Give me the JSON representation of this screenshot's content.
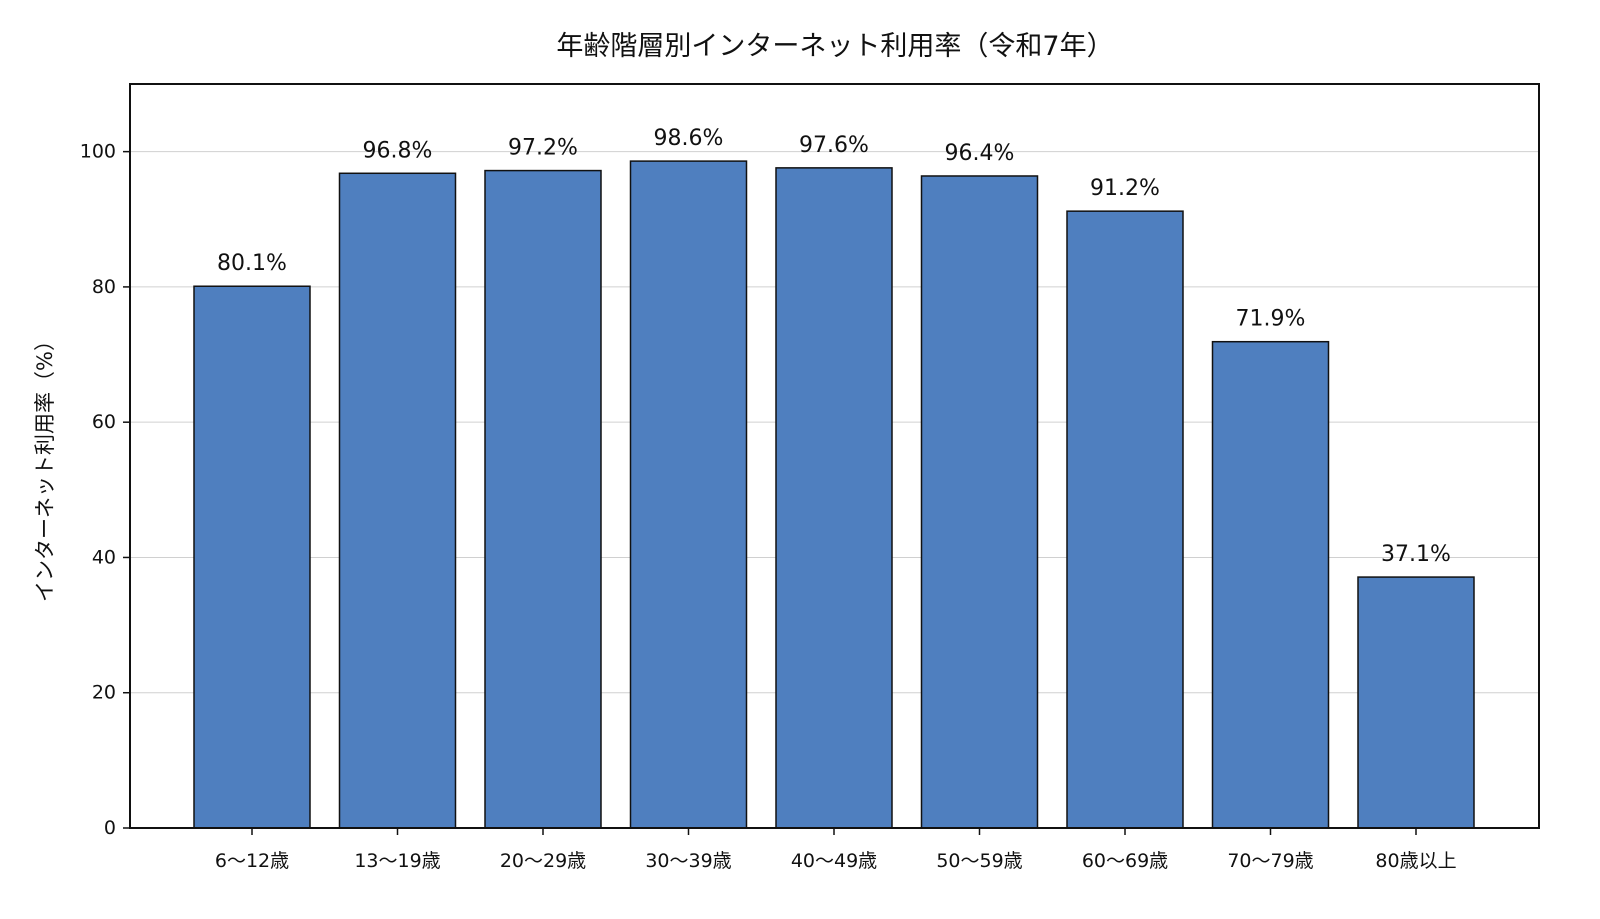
{
  "chart_data": {
    "type": "bar",
    "title": "年齢階層別インターネット利用率（令和7年）",
    "xlabel": "",
    "ylabel": "インターネット利用率（%）",
    "categories": [
      "6〜12歳",
      "13〜19歳",
      "20〜29歳",
      "30〜39歳",
      "40〜49歳",
      "50〜59歳",
      "60〜69歳",
      "70〜79歳",
      "80歳以上"
    ],
    "values": [
      80.1,
      96.8,
      97.2,
      98.6,
      97.6,
      96.4,
      91.2,
      71.9,
      37.1
    ],
    "data_labels": [
      "80.1%",
      "96.8%",
      "97.2%",
      "98.6%",
      "97.6%",
      "96.4%",
      "91.2%",
      "71.9%",
      "37.1%"
    ],
    "ylim": [
      0,
      110
    ],
    "yticks": [
      0,
      20,
      40,
      60,
      80,
      100
    ],
    "grid": "horizontal",
    "legend": "none",
    "colors": {
      "bar": "#4f7fbf",
      "bar_edge": "#111111",
      "grid": "#d0d0d0",
      "axis": "#111111"
    }
  }
}
